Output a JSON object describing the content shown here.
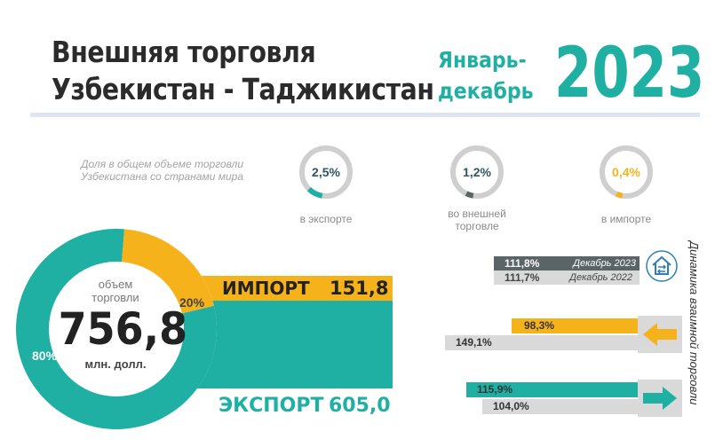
{
  "header": {
    "title_line1": "Внешняя торговля",
    "title_line2": "Узбекистан - Таджикистан",
    "period_line1": "Январь-",
    "period_line2": "декабрь",
    "year": "2023"
  },
  "share": {
    "caption_line1": "Доля в общем объеме торговли",
    "caption_line2": "Узбекистана со странами мира",
    "gauges": [
      {
        "value": "2,5%",
        "fraction": 0.025,
        "label_line1": "в экспорте",
        "label_line2": ""
      },
      {
        "value": "1,2%",
        "fraction": 0.012,
        "label_line1": "во внешней",
        "label_line2": "торговле"
      },
      {
        "value": "0,4%",
        "fraction": 0.004,
        "label_line1": "в импорте",
        "label_line2": ""
      }
    ]
  },
  "volume": {
    "label_line1": "объем",
    "label_line2": "торговли",
    "total": "756,8",
    "unit": "млн. долл.",
    "import_pct": "20%",
    "export_pct": "80%",
    "import_share": 0.2
  },
  "bars": {
    "import_label": "ИМПОРТ",
    "import_value": "151,8",
    "export_label": "ЭКСПОРТ",
    "export_value": "605,0"
  },
  "dynamics": {
    "title": "Динамика взаимной торговли",
    "total_current": "111,8%",
    "total_current_label": "Декабрь 2023",
    "total_prev": "111,7%",
    "total_prev_label": "Декабрь 2022",
    "import_current": "98,3%",
    "import_prev": "149,1%",
    "export_current": "115,9%",
    "export_prev": "104,0%"
  },
  "colors": {
    "teal": "#1fb0a3",
    "orange": "#f6b21b",
    "dark_grey": "#5b6467",
    "light_grey": "#d9d9d9"
  }
}
